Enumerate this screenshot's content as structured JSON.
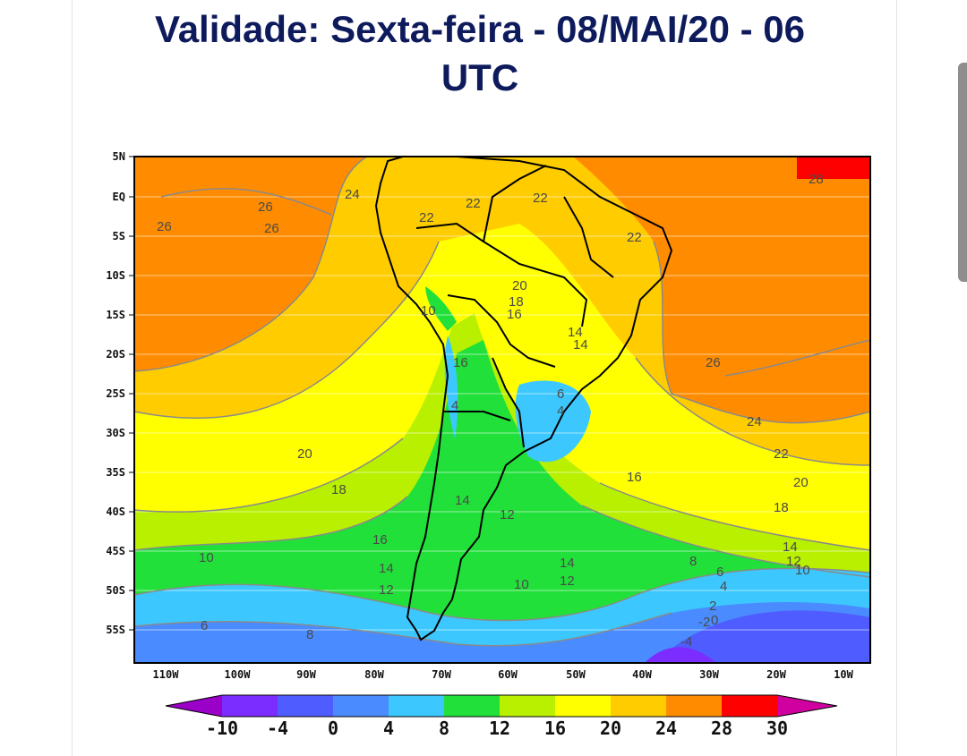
{
  "header": {
    "title_line1": "Validade: Sexta-feira - 08/MAI/20 - 06",
    "title_line2": "UTC"
  },
  "map": {
    "lat_ticks": [
      "5N",
      "EQ",
      "5S",
      "10S",
      "15S",
      "20S",
      "25S",
      "30S",
      "35S",
      "40S",
      "45S",
      "50S",
      "55S"
    ],
    "lon_ticks": [
      "110W",
      "100W",
      "90W",
      "80W",
      "70W",
      "60W",
      "50W",
      "40W",
      "30W",
      "20W",
      "10W"
    ],
    "contour_labels": [
      "28",
      "26",
      "26",
      "26",
      "24",
      "22",
      "22",
      "22",
      "22",
      "20",
      "18",
      "16",
      "10",
      "14",
      "14",
      "16",
      "6",
      "4",
      "4",
      "26",
      "24",
      "22",
      "20",
      "18",
      "16",
      "20",
      "18",
      "14",
      "16",
      "12",
      "10",
      "14",
      "12",
      "14",
      "12",
      "10",
      "8",
      "6",
      "4",
      "2",
      "0",
      "-2",
      "-4",
      "8",
      "6",
      "14",
      "12",
      "10"
    ]
  },
  "colorbar": {
    "labels": [
      "-10",
      "-4",
      "0",
      "4",
      "8",
      "12",
      "16",
      "20",
      "24",
      "28",
      "30"
    ],
    "colors": [
      "#9b00c8",
      "#7b2cff",
      "#4f5cff",
      "#4a8cff",
      "#3cc8ff",
      "#22e03a",
      "#b8f000",
      "#ffff00",
      "#ffcc00",
      "#ff8c00",
      "#ff0000",
      "#d000a0"
    ]
  }
}
